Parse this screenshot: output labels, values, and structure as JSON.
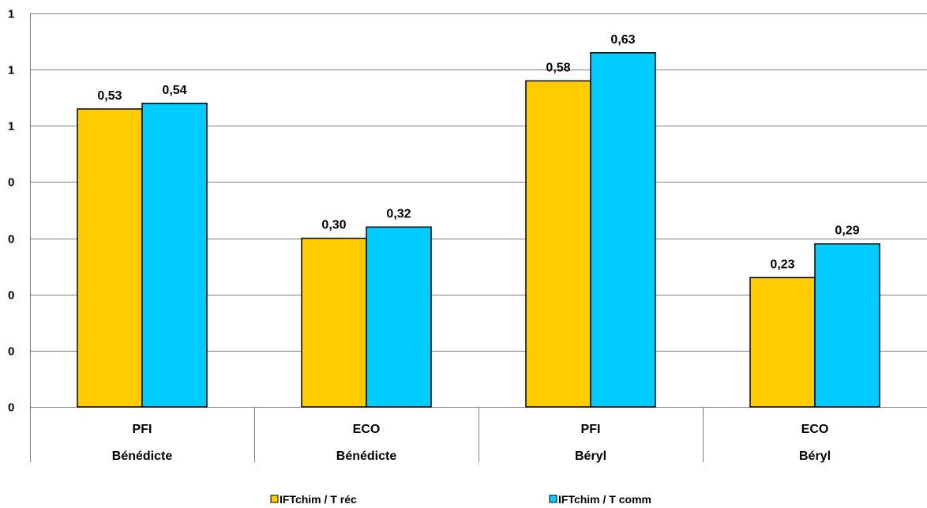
{
  "chart_data": {
    "type": "bar",
    "categories": [
      {
        "line1": "PFI",
        "line2": "Bénédicte"
      },
      {
        "line1": "ECO",
        "line2": "Bénédicte"
      },
      {
        "line1": "PFI",
        "line2": "Béryl"
      },
      {
        "line1": "ECO",
        "line2": "Béryl"
      }
    ],
    "series": [
      {
        "name": "IFTchim / T réc",
        "color": "#FFCC00",
        "values": [
          0.53,
          0.3,
          0.58,
          0.23
        ],
        "labels": [
          "0,53",
          "0,30",
          "0,58",
          "0,23"
        ]
      },
      {
        "name": "IFTchim / T comm",
        "color": "#00CCFF",
        "values": [
          0.54,
          0.32,
          0.63,
          0.29
        ],
        "labels": [
          "0,54",
          "0,32",
          "0,63",
          "0,29"
        ]
      }
    ],
    "ylim": [
      0,
      0.7
    ],
    "yticks": [
      0,
      0.1,
      0.2,
      0.3,
      0.4,
      0.5,
      0.6,
      0.7
    ],
    "ytick_labels": [
      "0",
      "0",
      "0",
      "0",
      "0",
      "1",
      "1",
      "1"
    ],
    "grid": true,
    "legend_position": "bottom",
    "title": "",
    "xlabel": "",
    "ylabel": ""
  }
}
